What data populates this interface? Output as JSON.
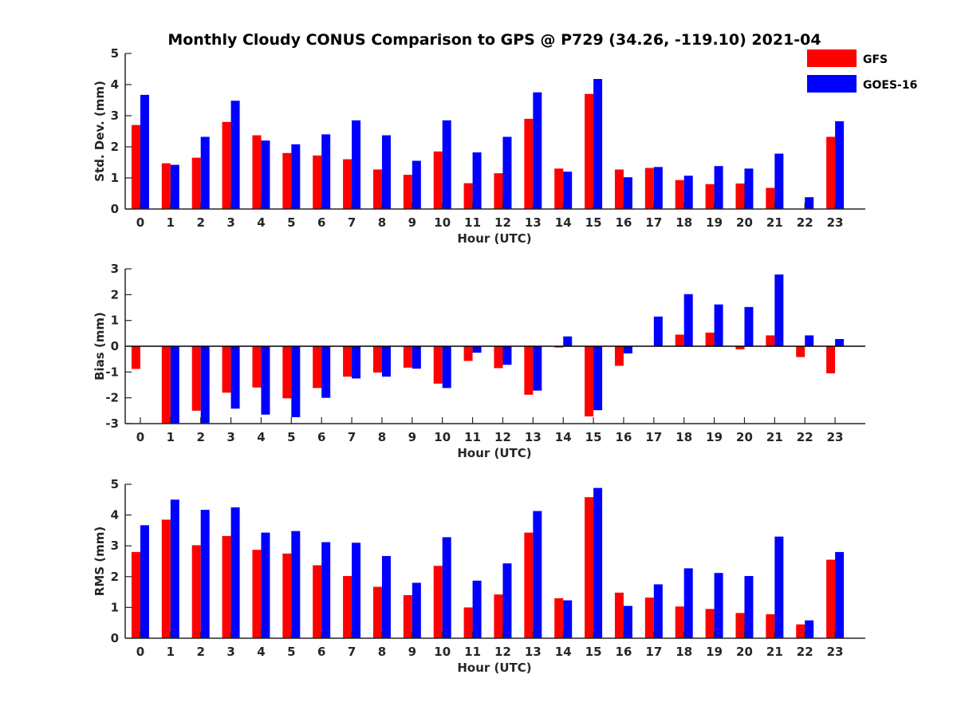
{
  "figure": {
    "title": "Monthly Cloudy CONUS Comparison to GPS @ P729 (34.26, -119.10) 2021-04"
  },
  "legend": {
    "entries": [
      {
        "label": "GFS",
        "color": "#ff0000"
      },
      {
        "label": "GOES-16",
        "color": "#0000ff"
      }
    ],
    "location": "top-right"
  },
  "chart_data": [
    {
      "type": "bar",
      "title": "Monthly Cloudy CONUS Comparison to GPS @ P729 (34.26, -119.10) 2021-04",
      "xlabel": "Hour (UTC)",
      "ylabel": "Std. Dev. (mm)",
      "ylim": [
        0,
        5
      ],
      "yticks": [
        "0",
        "1",
        "2",
        "3",
        "4",
        "5"
      ],
      "categories": [
        "0",
        "1",
        "2",
        "3",
        "4",
        "5",
        "6",
        "7",
        "8",
        "9",
        "10",
        "11",
        "12",
        "13",
        "14",
        "15",
        "16",
        "17",
        "18",
        "19",
        "20",
        "21",
        "22",
        "23"
      ],
      "series": [
        {
          "name": "GFS",
          "color": "#ff0000",
          "values": [
            2.7,
            1.47,
            1.65,
            2.8,
            2.37,
            1.8,
            1.72,
            1.6,
            1.27,
            1.1,
            1.85,
            0.83,
            1.15,
            2.9,
            1.3,
            3.7,
            1.27,
            1.32,
            0.93,
            0.8,
            0.82,
            0.68,
            0.0,
            2.32
          ]
        },
        {
          "name": "GOES-16",
          "color": "#0000ff",
          "values": [
            3.67,
            1.42,
            2.32,
            3.48,
            2.2,
            2.08,
            2.4,
            2.85,
            2.37,
            1.55,
            2.85,
            1.82,
            2.32,
            3.75,
            1.2,
            4.18,
            1.02,
            1.35,
            1.07,
            1.38,
            1.3,
            1.78,
            0.38,
            2.82
          ]
        }
      ]
    },
    {
      "type": "bar",
      "title": "",
      "xlabel": "Hour (UTC)",
      "ylabel": "Bias (mm)",
      "ylim": [
        -3,
        3
      ],
      "yticks": [
        "-3",
        "-2",
        "-1",
        "0",
        "1",
        "2",
        "3"
      ],
      "categories": [
        "0",
        "1",
        "2",
        "3",
        "4",
        "5",
        "6",
        "7",
        "8",
        "9",
        "10",
        "11",
        "12",
        "13",
        "14",
        "15",
        "16",
        "17",
        "18",
        "19",
        "20",
        "21",
        "22",
        "23"
      ],
      "series": [
        {
          "name": "GFS",
          "color": "#ff0000",
          "values": [
            -0.88,
            -3.0,
            -2.5,
            -1.8,
            -1.6,
            -2.02,
            -1.62,
            -1.18,
            -1.02,
            -0.83,
            -1.45,
            -0.57,
            -0.85,
            -1.88,
            -0.05,
            -2.72,
            -0.76,
            0.0,
            0.45,
            0.53,
            -0.12,
            0.42,
            -0.42,
            -1.05
          ]
        },
        {
          "name": "GOES-16",
          "color": "#0000ff",
          "values": [
            0.0,
            -3.0,
            -3.0,
            -2.42,
            -2.65,
            -2.75,
            -2.0,
            -1.25,
            -1.18,
            -0.87,
            -1.62,
            -0.25,
            -0.72,
            -1.72,
            0.38,
            -2.48,
            -0.28,
            1.15,
            2.02,
            1.62,
            1.52,
            2.78,
            0.42,
            0.28
          ]
        }
      ]
    },
    {
      "type": "bar",
      "title": "",
      "xlabel": "Hour (UTC)",
      "ylabel": "RMS (mm)",
      "ylim": [
        0,
        5
      ],
      "yticks": [
        "0",
        "1",
        "2",
        "3",
        "4",
        "5"
      ],
      "categories": [
        "0",
        "1",
        "2",
        "3",
        "4",
        "5",
        "6",
        "7",
        "8",
        "9",
        "10",
        "11",
        "12",
        "13",
        "14",
        "15",
        "16",
        "17",
        "18",
        "19",
        "20",
        "21",
        "22",
        "23"
      ],
      "series": [
        {
          "name": "GFS",
          "color": "#ff0000",
          "values": [
            2.8,
            3.85,
            3.02,
            3.32,
            2.87,
            2.75,
            2.37,
            2.02,
            1.67,
            1.4,
            2.35,
            1.0,
            1.42,
            3.43,
            1.3,
            4.58,
            1.48,
            1.32,
            1.03,
            0.95,
            0.82,
            0.78,
            0.45,
            2.55
          ]
        },
        {
          "name": "GOES-16",
          "color": "#0000ff",
          "values": [
            3.67,
            4.5,
            4.17,
            4.25,
            3.43,
            3.48,
            3.12,
            3.1,
            2.67,
            1.8,
            3.28,
            1.87,
            2.43,
            4.13,
            1.23,
            4.88,
            1.05,
            1.75,
            2.27,
            2.12,
            2.02,
            3.3,
            0.58,
            2.8
          ]
        }
      ]
    }
  ]
}
